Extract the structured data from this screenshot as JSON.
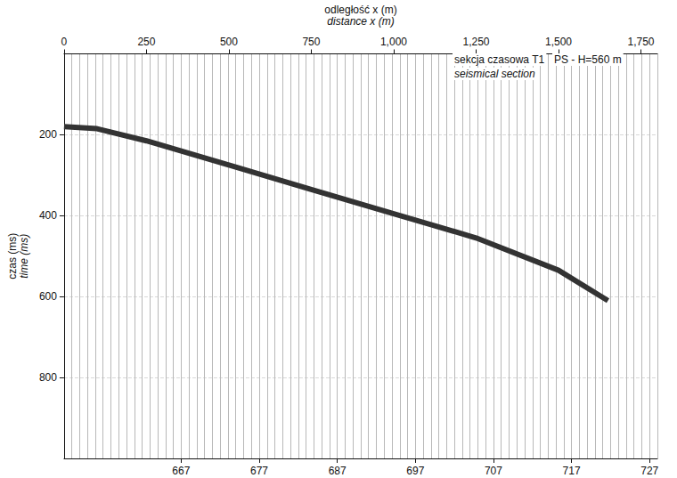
{
  "chart_data": {
    "type": "line",
    "x_label": "odległość x (m)",
    "x_label_en": "distance x (m)",
    "y_label": "czas (ms)",
    "y_label_en": "time (ms)",
    "annotations": [
      "sekcja czasowa T1",
      "PS - H=560 m",
      "seismical section"
    ],
    "x": [
      0,
      100,
      250,
      500,
      750,
      1000,
      1250,
      1500,
      1650
    ],
    "values": [
      180,
      185,
      215,
      275,
      335,
      395,
      455,
      535,
      610
    ],
    "color": "#333333",
    "xlim": [
      0,
      1800
    ],
    "xticks": [
      0,
      250,
      500,
      750,
      1000,
      1250,
      1500,
      1750
    ],
    "x2lim": [
      652,
      728
    ],
    "x2ticks": [
      667,
      677,
      687,
      697,
      707,
      717,
      727
    ],
    "ylim": [
      0,
      1000
    ],
    "yticks": [
      200,
      400,
      600,
      800
    ],
    "grid": true
  }
}
